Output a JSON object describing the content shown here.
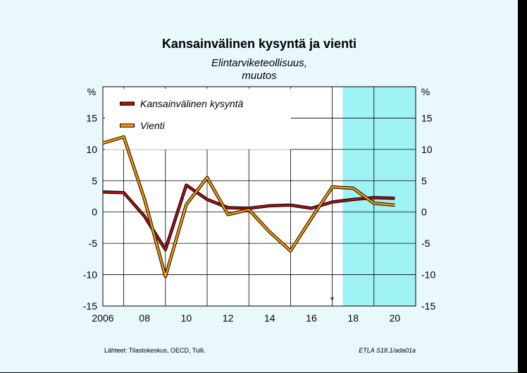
{
  "chart_data": {
    "type": "line",
    "title": "Kansainvälinen kysyntä ja vienti",
    "subtitle_lines": [
      "Elintarviketeollisuus,",
      "muutos"
    ],
    "y_unit_left": "%",
    "y_unit_right": "%",
    "ylim": [
      -15,
      20
    ],
    "yticks": [
      -15,
      -10,
      -5,
      0,
      5,
      10,
      15
    ],
    "xlim": [
      2006,
      2021
    ],
    "xtick_labels": [
      {
        "year": 2006,
        "label": "2006"
      },
      {
        "year": 2008,
        "label": "08"
      },
      {
        "year": 2010,
        "label": "10"
      },
      {
        "year": 2012,
        "label": "12"
      },
      {
        "year": 2014,
        "label": "14"
      },
      {
        "year": 2016,
        "label": "16"
      },
      {
        "year": 2018,
        "label": "18"
      },
      {
        "year": 2020,
        "label": "20"
      }
    ],
    "forecast_start": 2017.5,
    "forecast_marker": "*",
    "forecast_marker_year": 2017,
    "grid": true,
    "legend_position": "top-left",
    "series": [
      {
        "name": "Kansainvälinen kysyntä",
        "color": "#b01010",
        "points": [
          [
            2006,
            3.2
          ],
          [
            2007,
            3.1
          ],
          [
            2008,
            -0.7
          ],
          [
            2009,
            -6.0
          ],
          [
            2010,
            4.3
          ],
          [
            2011,
            2.0
          ],
          [
            2012,
            0.7
          ],
          [
            2013,
            0.6
          ],
          [
            2014,
            1.0
          ],
          [
            2015,
            1.1
          ],
          [
            2016,
            0.6
          ],
          [
            2017,
            1.6
          ],
          [
            2018,
            2.0
          ],
          [
            2019,
            2.3
          ],
          [
            2020,
            2.2
          ]
        ]
      },
      {
        "name": "Vienti",
        "color": "#ff9a00",
        "points": [
          [
            2006,
            11.0
          ],
          [
            2007,
            12.0
          ],
          [
            2008,
            2.0
          ],
          [
            2009,
            -10.3
          ],
          [
            2010,
            1.2
          ],
          [
            2011,
            5.5
          ],
          [
            2012,
            -0.4
          ],
          [
            2013,
            0.4
          ],
          [
            2014,
            -3.2
          ],
          [
            2015,
            -6.2
          ],
          [
            2016,
            -1.0
          ],
          [
            2017,
            4.0
          ],
          [
            2018,
            3.8
          ],
          [
            2019,
            1.4
          ],
          [
            2020,
            1.1
          ]
        ]
      }
    ]
  },
  "footer": {
    "source": "Lähteet:   Tilastokeskus, OECD, Tulli.",
    "code": "ETLA S18.1/ada01a"
  }
}
